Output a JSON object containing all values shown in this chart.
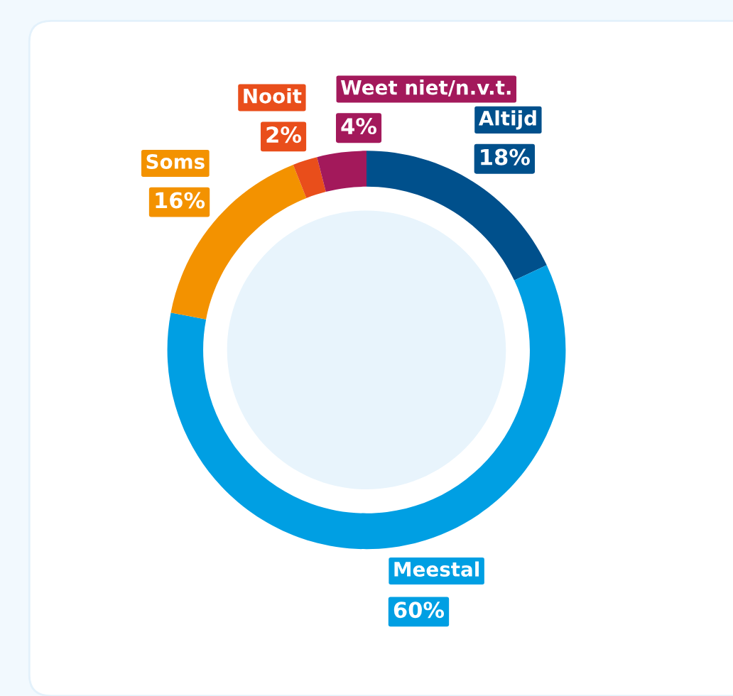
{
  "chart_data": {
    "type": "donut",
    "categories": [
      "Altijd",
      "Meestal",
      "Soms",
      "Nooit",
      "Weet niet/n.v.t."
    ],
    "values": [
      18,
      60,
      16,
      2,
      4
    ],
    "value_labels": [
      "18%",
      "60%",
      "16%",
      "2%",
      "4%"
    ],
    "colors": [
      "#00508c",
      "#009fe3",
      "#f39200",
      "#e94e1b",
      "#a3195b"
    ],
    "legend": false
  }
}
